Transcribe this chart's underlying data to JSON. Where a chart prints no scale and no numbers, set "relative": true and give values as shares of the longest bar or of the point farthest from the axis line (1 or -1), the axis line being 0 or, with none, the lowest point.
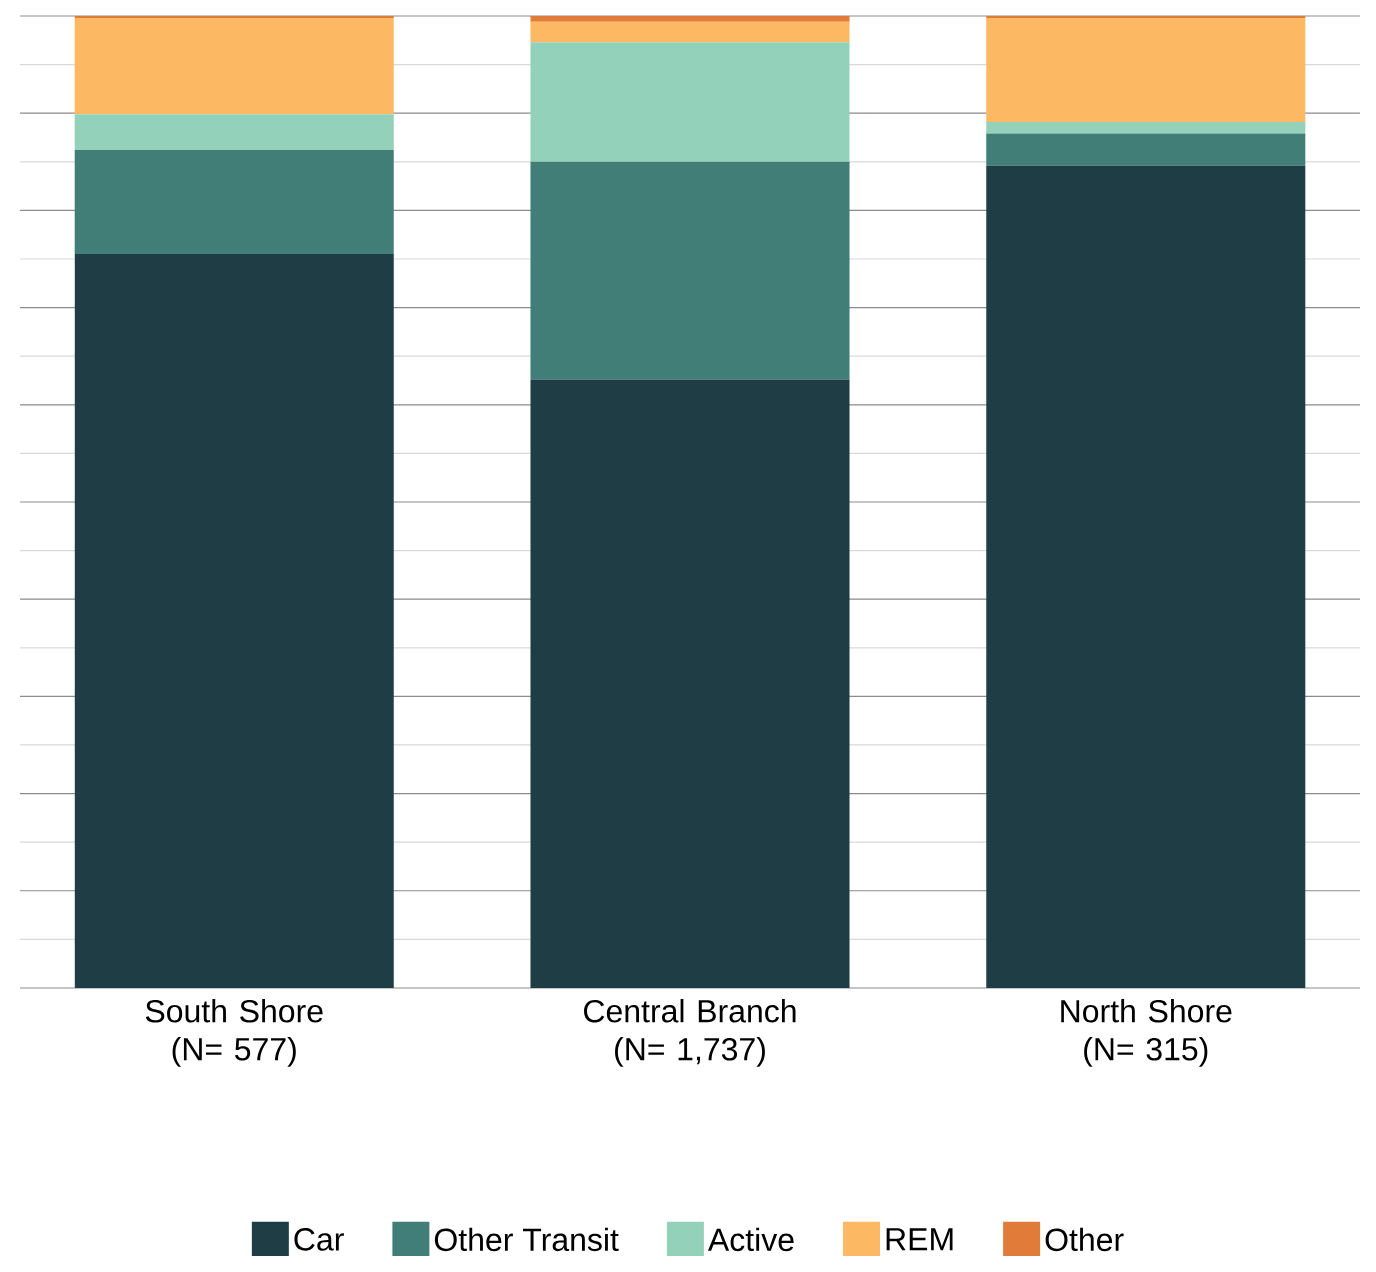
{
  "chart_data": {
    "type": "bar",
    "stacked": true,
    "relative": true,
    "grid": "y",
    "legend": "bottom",
    "categories": [
      "South Shore (N= 577)",
      "Central Branch (N= 1,737)",
      "North Shore (N= 315)"
    ],
    "series": [
      {
        "name": "Car",
        "color": "#1f3d45",
        "values": [
          0.755,
          0.626,
          0.846
        ]
      },
      {
        "name": "Other Transit",
        "color": "#417e78",
        "values": [
          0.107,
          0.224,
          0.033
        ]
      },
      {
        "name": "Active",
        "color": "#93d1bb",
        "values": [
          0.037,
          0.123,
          0.012
        ]
      },
      {
        "name": "REM",
        "color": "#fdb863",
        "values": [
          0.099,
          0.021,
          0.107
        ]
      },
      {
        "name": "Other",
        "color": "#e07b39",
        "values": [
          0.002,
          0.006,
          0.002
        ]
      }
    ]
  }
}
